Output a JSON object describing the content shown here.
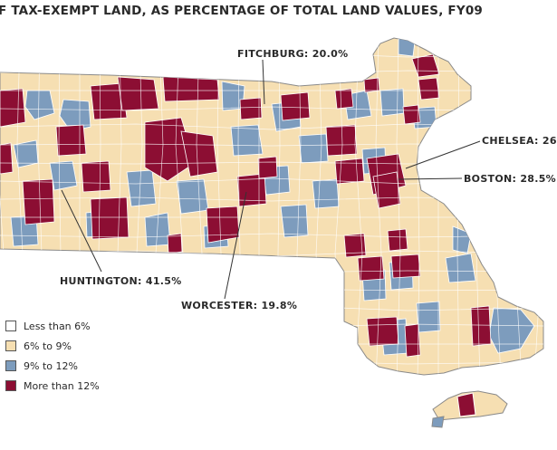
{
  "map": {
    "title": "F TAX-EXEMPT LAND, AS PERCENTAGE OF TOTAL LAND VALUES, FY09",
    "colors": {
      "under6": "#ffffff",
      "6to9": "#f6dfb2",
      "9to12": "#7d9cbd",
      "over12": "#8c0e33",
      "border": "#8a8a8a",
      "leader": "#333333"
    },
    "callouts": {
      "fitchburg": "FITCHBURG: 20.0%",
      "chelsea": "CHELSEA: 26",
      "boston": "BOSTON: 28.5%",
      "huntington": "HUNTINGTON: 41.5%",
      "worcester": "WORCESTER: 19.8%"
    },
    "legend": [
      {
        "label": "Less than 6%",
        "color_key": "under6"
      },
      {
        "label": "6% to 9%",
        "color_key": "6to9"
      },
      {
        "label": "9% to 12%",
        "color_key": "9to12"
      },
      {
        "label": "More than 12%",
        "color_key": "over12"
      }
    ]
  }
}
